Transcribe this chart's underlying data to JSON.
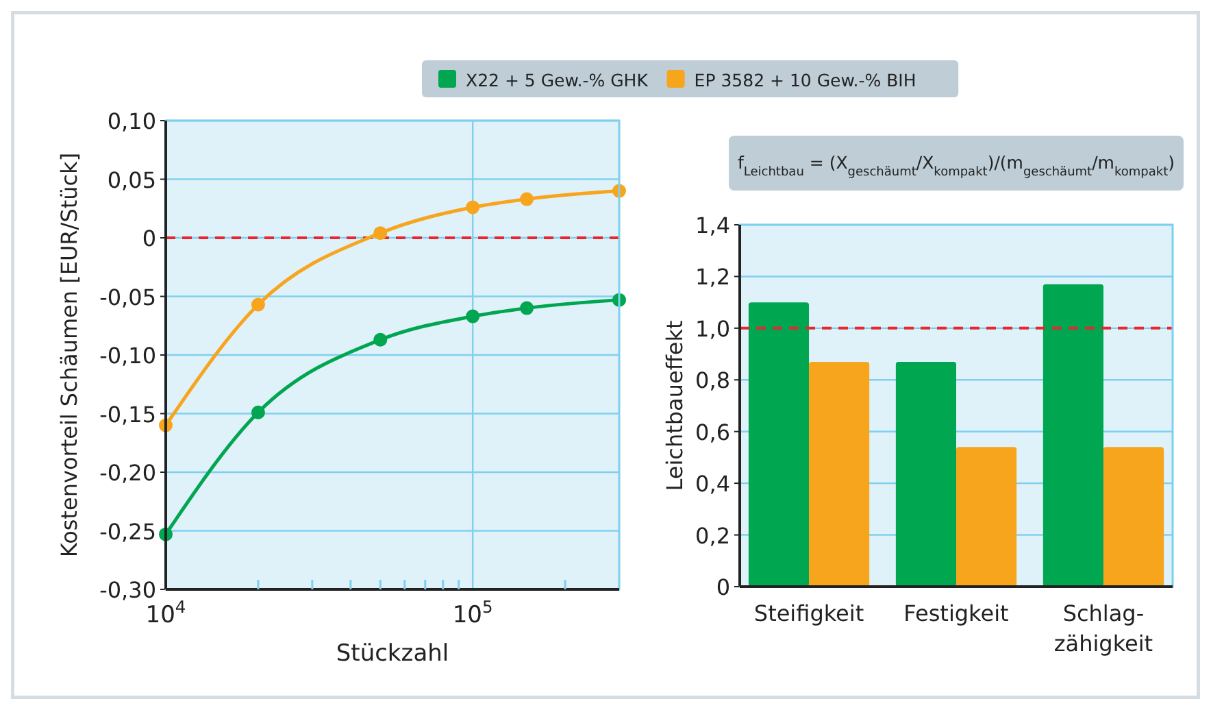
{
  "chart_data": [
    {
      "type": "line",
      "xlabel": "Stückzahl",
      "ylabel": "Kostenvorteil Schäumen [EUR/Stück]",
      "log": "x",
      "x": [
        10000,
        20000,
        50000,
        100000,
        150000,
        300000
      ],
      "series": [
        {
          "name": "X22 + 5 Gew.-% GHK",
          "color": "#00a650",
          "values": [
            -0.253,
            -0.149,
            -0.087,
            -0.067,
            -0.06,
            -0.053
          ]
        },
        {
          "name": "EP 3582 + 10 Gew.-% BIH",
          "color": "#f7a51d",
          "values": [
            -0.16,
            -0.057,
            0.004,
            0.026,
            0.033,
            0.04
          ]
        }
      ],
      "xlim": [
        10000,
        300000
      ],
      "xticks": [
        {
          "value": 10000,
          "label": "10$^{4}$"
        },
        {
          "value": 20000,
          "label": null
        },
        {
          "value": 30000,
          "label": null
        },
        {
          "value": 40000,
          "label": null
        },
        {
          "value": 50000,
          "label": null
        },
        {
          "value": 60000,
          "label": null
        },
        {
          "value": 70000,
          "label": null
        },
        {
          "value": 80000,
          "label": null
        },
        {
          "value": 90000,
          "label": null
        },
        {
          "value": 100000,
          "label": "10$^{5}$"
        },
        {
          "value": 200000,
          "label": null
        }
      ],
      "ylim": [
        -0.3,
        0.1
      ],
      "yticks": [
        {
          "value": -0.3,
          "label": "-0,30"
        },
        {
          "value": -0.25,
          "label": "-0,25"
        },
        {
          "value": -0.2,
          "label": "-0,20"
        },
        {
          "value": -0.15,
          "label": "-0,15"
        },
        {
          "value": -0.1,
          "label": "-0,10"
        },
        {
          "value": -0.05,
          "label": "-0,05"
        },
        0,
        {
          "value": 0.05,
          "label": "0,05"
        },
        {
          "value": 0.1,
          "label": "0,10"
        }
      ],
      "ref_lines": [
        {
          "axis": "y",
          "value": 0,
          "color": "#e8262d",
          "line_style": "dashed"
        }
      ],
      "grid": true,
      "marker": "circle",
      "line_style": "solid",
      "legend": "top"
    },
    {
      "type": "bar",
      "ylabel": "Leichtbaueffekt",
      "categories": [
        "Steifigkeit",
        "Festigkeit",
        "Schlag-zähigkeit"
      ],
      "series": [
        {
          "color": "#00a650",
          "values": [
            1.1,
            0.87,
            1.17
          ]
        },
        {
          "color": "#f7a51d",
          "values": [
            0.87,
            0.54,
            0.54
          ]
        }
      ],
      "ylim": [
        0,
        1.4
      ],
      "yticks": [
        0,
        {
          "value": 0.2,
          "label": "0,2"
        },
        {
          "value": 0.4,
          "label": "0,4"
        },
        {
          "value": 0.6,
          "label": "0,6"
        },
        {
          "value": 0.8,
          "label": "0,8"
        },
        {
          "value": 1.0,
          "label": "1,0"
        },
        {
          "value": 1.2,
          "label": "1,2"
        },
        {
          "value": 1.4,
          "label": "1,4"
        }
      ],
      "ref_lines": [
        {
          "axis": "y",
          "value": 1.0,
          "color": "#e8262d",
          "line_style": "dashed"
        }
      ],
      "annotations": [
        "f$_{Leichtbau}$ = (X$_{geschäumt}$/X$_{kompakt}$)/(m$_{geschäumt}$/m$_{kompakt}$)"
      ],
      "grid": "y"
    }
  ]
}
